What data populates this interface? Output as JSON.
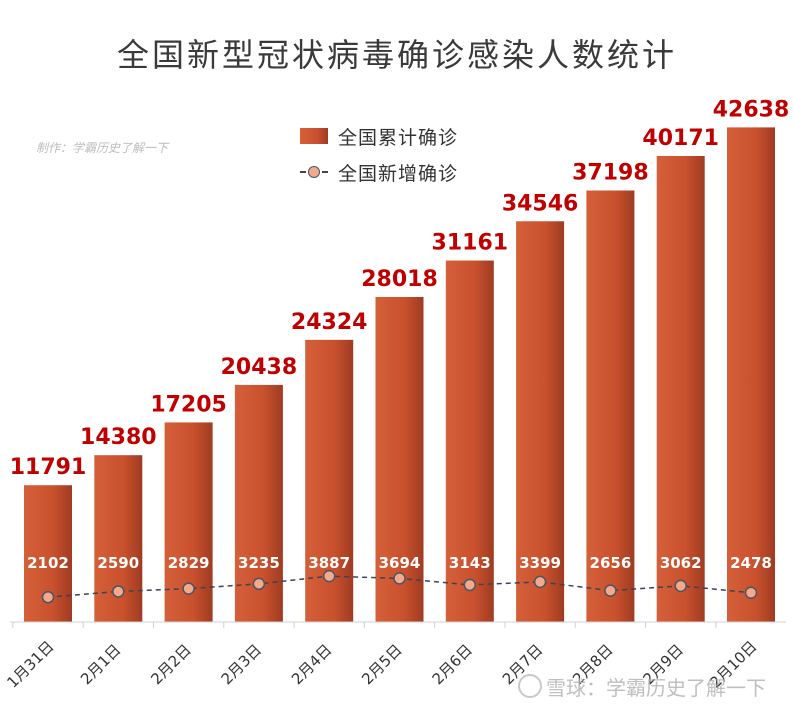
{
  "title": "全国新型冠状病毒确诊感染人数统计",
  "credit": "制作：学霸历史了解一下",
  "watermark": "雪球：学霸历史了解一下",
  "legend": {
    "cumulative": "全国累计确诊",
    "new": "全国新增确诊"
  },
  "colors": {
    "bar": "#c9512d",
    "bar_label": "#c00000",
    "line": "#3b4455",
    "marker": "#f4a98a"
  },
  "chart_data": {
    "type": "bar",
    "categories": [
      "1月31日",
      "2月1日",
      "2月2日",
      "2月3日",
      "2月4日",
      "2月5日",
      "2月6日",
      "2月7日",
      "2月8日",
      "2月9日",
      "2月10日"
    ],
    "series": [
      {
        "name": "全国累计确诊",
        "type": "bar",
        "values": [
          11791,
          14380,
          17205,
          20438,
          24324,
          28018,
          31161,
          34546,
          37198,
          40171,
          42638
        ]
      },
      {
        "name": "全国新增确诊",
        "type": "line",
        "values": [
          2102,
          2590,
          2829,
          3235,
          3887,
          3694,
          3143,
          3399,
          2656,
          3062,
          2478
        ]
      }
    ],
    "title": "全国新型冠状病毒确诊感染人数统计",
    "xlabel": "",
    "ylabel": "",
    "grid": false,
    "legend_position": "top"
  }
}
